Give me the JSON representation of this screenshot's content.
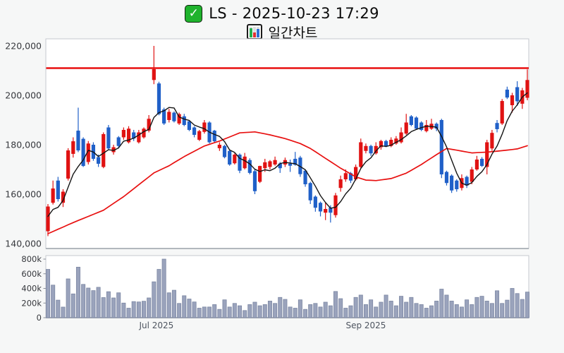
{
  "header": {
    "title": "LS - 2025-10-23 17:29",
    "subtitle": "일간차트",
    "checkbox_icon": "✓"
  },
  "chart_data": {
    "type": "candlestick",
    "symbol": "LS",
    "as_of": "2025-10-23 17:29",
    "chart_name": "일간차트",
    "panes": [
      "price",
      "volume"
    ],
    "grid": false,
    "price_axis": {
      "min": 138000,
      "max": 222000,
      "ticks": [
        {
          "v": 220000,
          "label": "220,000"
        },
        {
          "v": 200000,
          "label": "200,000"
        },
        {
          "v": 180000,
          "label": "180,000"
        },
        {
          "v": 160000,
          "label": "160,000"
        },
        {
          "v": 140000,
          "label": "140,000"
        }
      ]
    },
    "volume_axis": {
      "min": 0,
      "max": 800000,
      "ticks": [
        {
          "v": 800000,
          "label": "800k"
        },
        {
          "v": 600000,
          "label": "600k"
        },
        {
          "v": 400000,
          "label": "400k"
        },
        {
          "v": 200000,
          "label": "200k"
        },
        {
          "v": 0,
          "label": "0"
        }
      ]
    },
    "x_ticks": [
      {
        "i": 21.5,
        "label": "Jul 2025"
      },
      {
        "i": 63,
        "label": "Sep 2025"
      }
    ],
    "alert_line": {
      "value": 211000
    },
    "colors": {
      "up": "#e01212",
      "down": "#2060c8",
      "ma_short": "#141414",
      "ma_long": "#e81010",
      "alert": "#e81010",
      "volume_fill": "#9aa3bc",
      "volume_stroke": "#7c87a3"
    },
    "candles": [
      [
        145000,
        156000,
        143000,
        155000
      ],
      [
        156500,
        165500,
        155800,
        162300
      ],
      [
        165500,
        167000,
        157000,
        158000
      ],
      [
        156500,
        162000,
        154800,
        161000
      ],
      [
        166300,
        178600,
        165500,
        177700
      ],
      [
        176300,
        183000,
        174800,
        181400
      ],
      [
        185700,
        195000,
        177000,
        177700
      ],
      [
        182400,
        183000,
        171000,
        171400
      ],
      [
        173000,
        181500,
        172000,
        180500
      ],
      [
        180000,
        181000,
        173500,
        174300
      ],
      [
        175000,
        176000,
        171000,
        172300
      ],
      [
        171000,
        185000,
        170500,
        184300
      ],
      [
        187000,
        188000,
        178000,
        178500
      ],
      [
        177000,
        180000,
        176000,
        179000
      ],
      [
        183000,
        183500,
        178500,
        179500
      ],
      [
        183000,
        187000,
        182000,
        186000
      ],
      [
        181000,
        187500,
        180500,
        186500
      ],
      [
        185000,
        186000,
        181500,
        182500
      ],
      [
        181000,
        186000,
        180500,
        185000
      ],
      [
        183000,
        187000,
        182500,
        186500
      ],
      [
        185700,
        192000,
        185000,
        190500
      ],
      [
        206200,
        220000,
        204500,
        210600
      ],
      [
        204800,
        205500,
        191900,
        192400
      ],
      [
        194300,
        195000,
        188000,
        188600
      ],
      [
        190000,
        194500,
        189000,
        193300
      ],
      [
        193000,
        193500,
        189000,
        189500
      ],
      [
        188600,
        193000,
        188000,
        192400
      ],
      [
        191500,
        192500,
        187500,
        188000
      ],
      [
        189500,
        190000,
        185500,
        186000
      ],
      [
        187000,
        187500,
        183000,
        184000
      ],
      [
        182000,
        186000,
        181500,
        185500
      ],
      [
        185200,
        190000,
        184500,
        189000
      ],
      [
        189000,
        189500,
        180500,
        181000
      ],
      [
        185700,
        186000,
        181000,
        181400
      ],
      [
        178600,
        181000,
        177500,
        180000
      ],
      [
        179500,
        180000,
        174500,
        175000
      ],
      [
        177500,
        178000,
        171500,
        172000
      ],
      [
        172500,
        176500,
        172000,
        176000
      ],
      [
        176000,
        176500,
        168500,
        169500
      ],
      [
        170500,
        176700,
        170000,
        175200
      ],
      [
        173800,
        174500,
        168000,
        168600
      ],
      [
        169300,
        170000,
        160000,
        161200
      ],
      [
        165000,
        171500,
        164500,
        171400
      ],
      [
        170500,
        174300,
        169000,
        172900
      ],
      [
        171000,
        173800,
        170000,
        173300
      ],
      [
        172000,
        175200,
        171500,
        173800
      ],
      [
        172400,
        173000,
        168600,
        170500
      ],
      [
        172000,
        174800,
        171000,
        173800
      ],
      [
        172300,
        174000,
        169000,
        171500
      ],
      [
        174300,
        177100,
        171500,
        171900
      ],
      [
        174800,
        175500,
        167000,
        168100
      ],
      [
        169500,
        170000,
        163000,
        164000
      ],
      [
        164500,
        165000,
        156000,
        157500
      ],
      [
        159000,
        159500,
        152900,
        154500
      ],
      [
        156500,
        157000,
        151000,
        153000
      ],
      [
        152500,
        156500,
        149500,
        154000
      ],
      [
        154500,
        155500,
        148500,
        152500
      ],
      [
        151500,
        160500,
        150500,
        159500
      ],
      [
        162500,
        167500,
        161000,
        166000
      ],
      [
        166000,
        170000,
        165000,
        168500
      ],
      [
        168500,
        169000,
        164500,
        165500
      ],
      [
        166000,
        172000,
        165500,
        171000
      ],
      [
        171000,
        182500,
        170500,
        181000
      ],
      [
        177500,
        180500,
        176500,
        179500
      ],
      [
        179500,
        180000,
        175500,
        176500
      ],
      [
        176500,
        181000,
        176000,
        179500
      ],
      [
        179000,
        182000,
        178000,
        181500
      ],
      [
        181500,
        182000,
        179000,
        179500
      ],
      [
        179500,
        183000,
        179000,
        182000
      ],
      [
        180500,
        183500,
        180000,
        182500
      ],
      [
        181000,
        187000,
        180500,
        185000
      ],
      [
        184500,
        192500,
        184000,
        189000
      ],
      [
        191500,
        192000,
        187500,
        188000
      ],
      [
        191000,
        191500,
        186000,
        186500
      ],
      [
        189000,
        189500,
        185500,
        186000
      ],
      [
        185500,
        190000,
        185000,
        188000
      ],
      [
        186500,
        190500,
        186000,
        188500
      ],
      [
        188500,
        189000,
        185500,
        186500
      ],
      [
        190000,
        190500,
        166500,
        168000
      ],
      [
        169000,
        169500,
        163500,
        164500
      ],
      [
        167500,
        168000,
        160500,
        161500
      ],
      [
        165500,
        166000,
        161000,
        162000
      ],
      [
        162500,
        168000,
        161500,
        166500
      ],
      [
        167000,
        167500,
        162500,
        163500
      ],
      [
        165000,
        171000,
        164000,
        170000
      ],
      [
        170000,
        175500,
        169500,
        174000
      ],
      [
        174300,
        175000,
        171000,
        171400
      ],
      [
        171000,
        182000,
        168000,
        181000
      ],
      [
        178500,
        186000,
        177500,
        184800
      ],
      [
        188800,
        190000,
        185000,
        186300
      ],
      [
        188600,
        198500,
        188000,
        197700
      ],
      [
        202300,
        203500,
        198500,
        199100
      ],
      [
        196000,
        201000,
        193000,
        200000
      ],
      [
        203300,
        205700,
        195700,
        197600
      ],
      [
        196600,
        203000,
        194500,
        202000
      ],
      [
        199000,
        210500,
        198000,
        206200
      ]
    ],
    "volumes": [
      660000,
      445000,
      240000,
      145000,
      530000,
      325000,
      690000,
      455000,
      405000,
      370000,
      415000,
      275000,
      355000,
      270000,
      340000,
      200000,
      130000,
      220000,
      215000,
      225000,
      270000,
      490000,
      660000,
      800000,
      340000,
      375000,
      195000,
      300000,
      255000,
      215000,
      130000,
      146000,
      146000,
      179000,
      114000,
      244000,
      146000,
      195000,
      163000,
      98000,
      179000,
      212000,
      163000,
      179000,
      227000,
      195000,
      277000,
      250000,
      146000,
      130000,
      244000,
      114000,
      179000,
      195000,
      146000,
      212000,
      163000,
      358000,
      260000,
      130000,
      163000,
      277000,
      309000,
      179000,
      244000,
      146000,
      212000,
      309000,
      227000,
      163000,
      293000,
      212000,
      277000,
      195000,
      179000,
      130000,
      163000,
      227000,
      390000,
      309000,
      227000,
      179000,
      146000,
      244000,
      179000,
      277000,
      293000,
      227000,
      195000,
      368000,
      195000,
      240000,
      400000,
      330000,
      250000,
      350000
    ],
    "ma_short_seed": [
      147000,
      151000
    ],
    "ma_short_window": 5,
    "ma_long_points": [
      [
        0,
        144000
      ],
      [
        5,
        148500
      ],
      [
        11,
        153500
      ],
      [
        15,
        159000
      ],
      [
        21,
        168600
      ],
      [
        24,
        171500
      ],
      [
        27,
        175200
      ],
      [
        31,
        179500
      ],
      [
        34,
        181500
      ],
      [
        38,
        184800
      ],
      [
        41,
        185200
      ],
      [
        44,
        184000
      ],
      [
        47,
        182500
      ],
      [
        50,
        180500
      ],
      [
        52,
        178500
      ],
      [
        55,
        174500
      ],
      [
        58,
        170500
      ],
      [
        61,
        167000
      ],
      [
        63,
        165700
      ],
      [
        65,
        165500
      ],
      [
        68,
        166300
      ],
      [
        71,
        168500
      ],
      [
        74,
        172000
      ],
      [
        77,
        176000
      ],
      [
        79,
        178500
      ],
      [
        81,
        177800
      ],
      [
        84,
        176700
      ],
      [
        87,
        177000
      ],
      [
        90,
        177600
      ],
      [
        93,
        178300
      ],
      [
        95,
        179600
      ]
    ]
  }
}
